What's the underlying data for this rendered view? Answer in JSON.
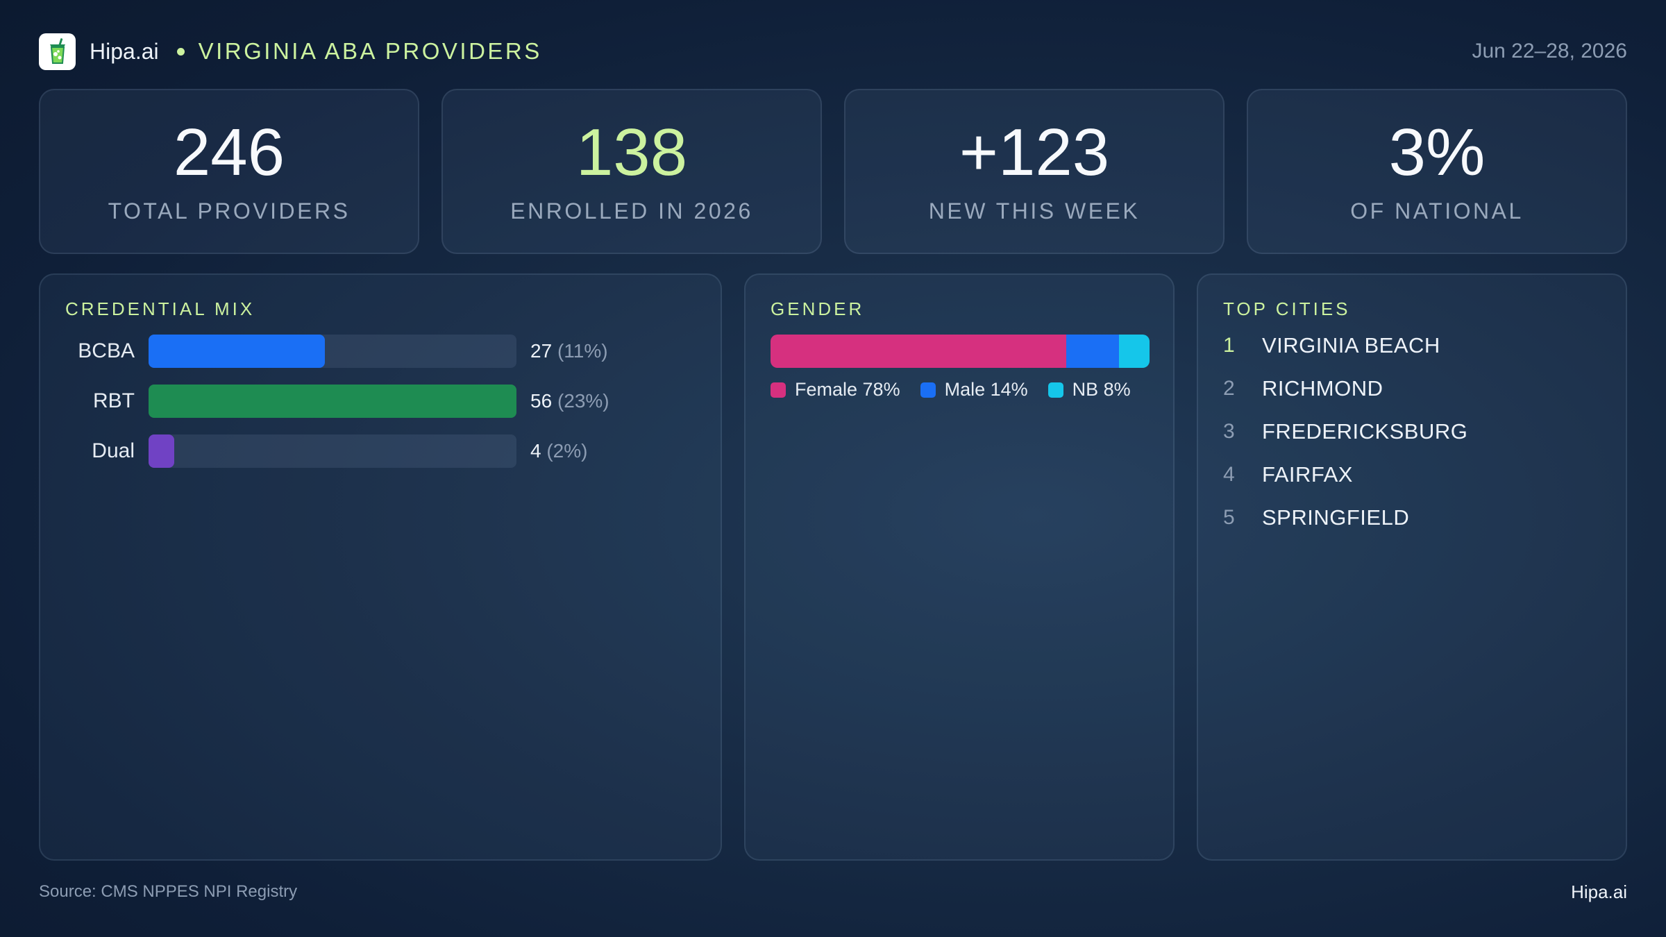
{
  "header": {
    "brand": "Hipa.ai",
    "title": "VIRGINIA ABA PROVIDERS",
    "date_range": "Jun 22–28, 2026",
    "logo_icon": "drink-cup-icon"
  },
  "kpis": [
    {
      "value": "246",
      "label": "TOTAL PROVIDERS",
      "accent": false
    },
    {
      "value": "138",
      "label": "ENROLLED IN 2026",
      "accent": true
    },
    {
      "value": "+123",
      "label": "NEW THIS WEEK",
      "accent": false
    },
    {
      "value": "3%",
      "label": "OF NATIONAL",
      "accent": false
    }
  ],
  "credential_mix": {
    "title": "CREDENTIAL MIX"
  },
  "gender": {
    "title": "GENDER"
  },
  "top_cities": {
    "title": "TOP CITIES",
    "items": [
      {
        "rank": "1",
        "name": "VIRGINIA BEACH"
      },
      {
        "rank": "2",
        "name": "RICHMOND"
      },
      {
        "rank": "3",
        "name": "FREDERICKSBURG"
      },
      {
        "rank": "4",
        "name": "FAIRFAX"
      },
      {
        "rank": "5",
        "name": "SPRINGFIELD"
      }
    ]
  },
  "footer": {
    "source": "Source: CMS NPPES NPI Registry",
    "brand": "Hipa.ai"
  },
  "colors": {
    "accent": "#ccf29f",
    "bcba": "#1a6ff5",
    "rbt": "#1e8c52",
    "dual": "#7042c4",
    "female": "#d6307f",
    "male": "#1a6ff5",
    "nb": "#15c6ea"
  },
  "chart_data": [
    {
      "type": "bar",
      "title": "CREDENTIAL MIX",
      "orientation": "horizontal",
      "categories": [
        "BCBA",
        "RBT",
        "Dual"
      ],
      "values": [
        27,
        56,
        4
      ],
      "value_labels": [
        "27",
        "56",
        "4"
      ],
      "percent_labels": [
        "(11%)",
        "(23%)",
        "(2%)"
      ],
      "fill_fraction": [
        0.48,
        1.0,
        0.07
      ],
      "colors": [
        "#1a6ff5",
        "#1e8c52",
        "#7042c4"
      ]
    },
    {
      "type": "bar",
      "title": "GENDER",
      "orientation": "stacked-horizontal",
      "categories": [
        "Female",
        "Male",
        "NB"
      ],
      "values": [
        78,
        14,
        8
      ],
      "legend_labels": [
        "Female 78%",
        "Male 14%",
        "NB 8%"
      ],
      "colors": [
        "#d6307f",
        "#1a6ff5",
        "#15c6ea"
      ],
      "legend": "bottom"
    }
  ]
}
